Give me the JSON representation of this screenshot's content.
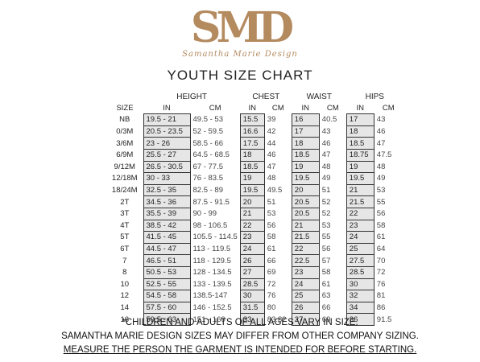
{
  "logo": {
    "letters": "SMD",
    "script": "Samantha Marie Design"
  },
  "title": "YOUTH SIZE CHART",
  "chart_data": {
    "type": "table",
    "group_headers": [
      "HEIGHT",
      "CHEST",
      "WAIST",
      "HIPS"
    ],
    "sub_headers": [
      "SIZE",
      "IN",
      "CM",
      "IN",
      "CM",
      "IN",
      "CM",
      "IN",
      "CM"
    ],
    "rows": [
      [
        "NB",
        "19.5 - 21",
        "49.5 - 53",
        "15.5",
        "39",
        "16",
        "40.5",
        "17",
        "43"
      ],
      [
        "0/3M",
        "20.5 - 23.5",
        "52 - 59.5",
        "16.6",
        "42",
        "17",
        "43",
        "18",
        "46"
      ],
      [
        "3/6M",
        "23 - 26",
        "58.5 - 66",
        "17.5",
        "44",
        "18",
        "46",
        "18.5",
        "47"
      ],
      [
        "6/9M",
        "25.5 - 27",
        "64.5 - 68.5",
        "18",
        "46",
        "18.5",
        "47",
        "18.75",
        "47.5"
      ],
      [
        "9/12M",
        "26.5 - 30.5",
        "67 - 77.5",
        "18.5",
        "47",
        "19",
        "48",
        "19",
        "48"
      ],
      [
        "12/18M",
        "30 - 33",
        "76 - 83.5",
        "19",
        "48",
        "19.5",
        "49",
        "19.5",
        "49"
      ],
      [
        "18/24M",
        "32.5 - 35",
        "82.5 - 89",
        "19.5",
        "49.5",
        "20",
        "51",
        "21",
        "53"
      ],
      [
        "2T",
        "34.5 - 36",
        "87.5 - 91.5",
        "20",
        "51",
        "20.5",
        "52",
        "21.5",
        "55"
      ],
      [
        "3T",
        "35.5 - 39",
        "90 - 99",
        "21",
        "53",
        "20.5",
        "52",
        "22",
        "56"
      ],
      [
        "4T",
        "38.5 - 42",
        "98 - 106.5",
        "22",
        "56",
        "21",
        "53",
        "23",
        "58"
      ],
      [
        "5T",
        "41.5 - 45",
        "105.5 - 114.5",
        "23",
        "58",
        "21.5",
        "55",
        "24",
        "61"
      ],
      [
        "6T",
        "44.5 - 47",
        "113 - 119.5",
        "24",
        "61",
        "22",
        "56",
        "25",
        "64"
      ],
      [
        "7",
        "46.5 - 51",
        "118 - 129.5",
        "26",
        "66",
        "22.5",
        "57",
        "27.5",
        "70"
      ],
      [
        "8",
        "50.5 - 53",
        "128 - 134.5",
        "27",
        "69",
        "23",
        "58",
        "28.5",
        "72"
      ],
      [
        "10",
        "52.5 - 55",
        "133 - 139.5",
        "28.5",
        "72",
        "24",
        "61",
        "30",
        "76"
      ],
      [
        "12",
        "54.5 - 58",
        "138.5-147",
        "30",
        "76",
        "25",
        "63",
        "32",
        "81"
      ],
      [
        "14",
        "57.5 - 60",
        "146 - 152.5",
        "31.5",
        "80",
        "26",
        "66",
        "34",
        "86"
      ],
      [
        "16",
        "59.5 - 63",
        "151 - 160",
        "33",
        "83.82",
        "27",
        "69",
        "36",
        "91.5"
      ]
    ]
  },
  "notes": {
    "line1": "*CHILDREN AND ADULTS OF ALL AGES VARY IN SIZE.",
    "line2": "SAMANTHA MARIE DESIGN SIZES MAY DIFFER FROM OTHER COMPANY SIZING.",
    "line3": "MEASURE THE PERSON THE GARMENT IS INTENDED FOR BEFORE STARTING."
  }
}
